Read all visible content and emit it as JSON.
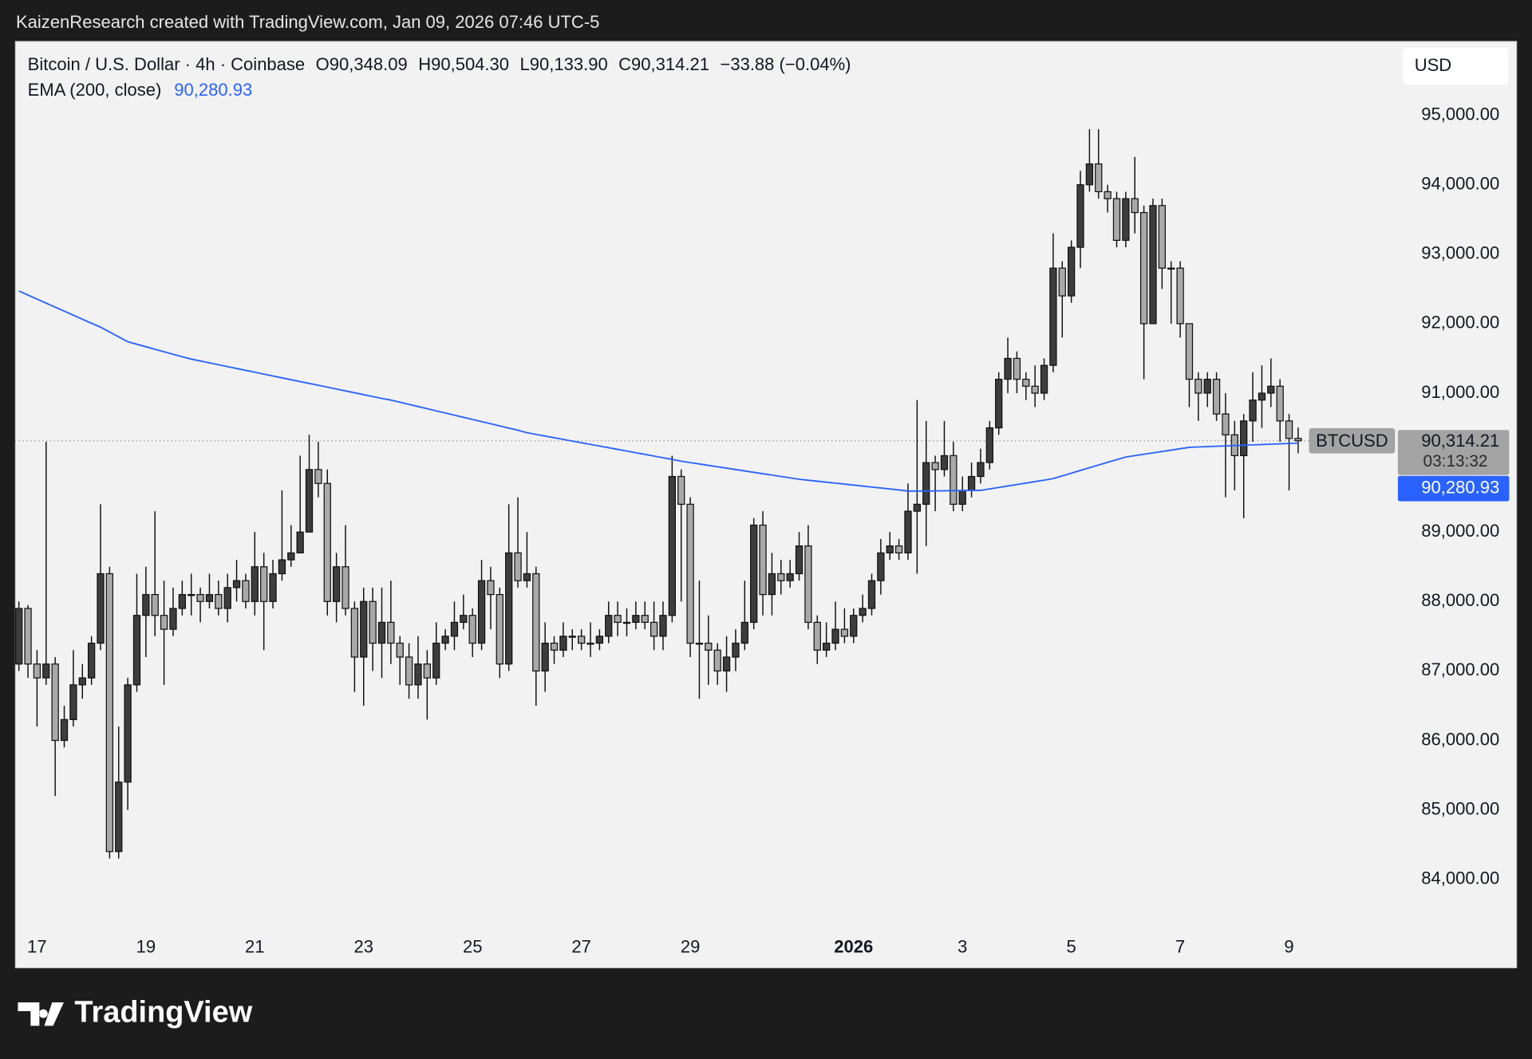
{
  "header": "KaizenResearch created with TradingView.com, Jan 09, 2026 07:46 UTC-5",
  "logo": "TradingView",
  "chart_data": {
    "type": "candlestick",
    "legend": {
      "symbol": "Bitcoin / U.S. Dollar · 4h · Coinbase",
      "o": "O90,348.09",
      "h": "H90,504.30",
      "l": "L90,133.90",
      "c": "C90,314.21",
      "change": "−33.88 (−0.04%)"
    },
    "currency": "USD",
    "up_color": "#3d3d3d",
    "down_color": "#a9a9a9",
    "wick_color": "#111111",
    "categories": [
      null,
      null,
      "17",
      null,
      null,
      null,
      null,
      null,
      null,
      null,
      null,
      null,
      null,
      null,
      "19",
      null,
      null,
      null,
      null,
      null,
      null,
      null,
      null,
      null,
      null,
      null,
      "21",
      null,
      null,
      null,
      null,
      null,
      null,
      null,
      null,
      null,
      null,
      null,
      "23",
      null,
      null,
      null,
      null,
      null,
      null,
      null,
      null,
      null,
      null,
      null,
      "25",
      null,
      null,
      null,
      null,
      null,
      null,
      null,
      null,
      null,
      null,
      null,
      "27",
      null,
      null,
      null,
      null,
      null,
      null,
      null,
      null,
      null,
      null,
      null,
      "29",
      null,
      null,
      null,
      null,
      null,
      null,
      null,
      null,
      null,
      null,
      null,
      null,
      null,
      null,
      null,
      null,
      null,
      "2026",
      null,
      null,
      null,
      null,
      null,
      null,
      null,
      null,
      null,
      null,
      null,
      "3",
      null,
      null,
      null,
      null,
      null,
      null,
      null,
      null,
      null,
      null,
      null,
      "5",
      null,
      null,
      null,
      null,
      null,
      null,
      null,
      null,
      null,
      null,
      null,
      "7",
      null,
      null,
      null,
      null,
      null,
      null,
      null,
      null,
      null,
      null,
      null,
      "9",
      null
    ],
    "open": [
      87100,
      87900,
      87100,
      86900,
      87100,
      86000,
      86300,
      86800,
      86900,
      87400,
      88400,
      84400,
      85400,
      86800,
      87800,
      88100,
      87800,
      87600,
      87900,
      88100,
      88100,
      88000,
      88100,
      87900,
      88200,
      88300,
      88000,
      88500,
      88000,
      88400,
      88600,
      88700,
      89000,
      89900,
      89700,
      88000,
      88500,
      87900,
      87200,
      88000,
      87400,
      87700,
      87400,
      87200,
      86800,
      87100,
      86900,
      87400,
      87500,
      87700,
      87800,
      87400,
      88300,
      88100,
      87100,
      88700,
      88300,
      88400,
      87000,
      87400,
      87300,
      87500,
      87500,
      87400,
      87400,
      87500,
      87800,
      87700,
      87700,
      87800,
      87700,
      87500,
      87800,
      89800,
      89400,
      87400,
      87400,
      87300,
      87000,
      87200,
      87400,
      87700,
      89100,
      88100,
      88400,
      88300,
      88400,
      88800,
      87700,
      87300,
      87400,
      87600,
      87500,
      87800,
      87900,
      88300,
      88700,
      88800,
      88700,
      89300,
      89400,
      90000,
      89900,
      90100,
      89400,
      89600,
      89800,
      90000,
      90500,
      91200,
      91500,
      91200,
      91100,
      91000,
      91400,
      92800,
      92400,
      93100,
      94000,
      94300,
      93900,
      93800,
      93200,
      93800,
      93600,
      92000,
      93700,
      92800,
      92800,
      92000,
      91200,
      91000,
      91200,
      90700,
      90400,
      90100,
      90600,
      90900,
      91000,
      91100,
      90600,
      90348.09
    ],
    "high": [
      88000,
      87950,
      87300,
      90300,
      87200,
      86500,
      87300,
      87100,
      87500,
      89400,
      88500,
      86200,
      86900,
      88400,
      88500,
      89300,
      88300,
      88200,
      88300,
      88400,
      88200,
      88400,
      88300,
      88400,
      88600,
      88400,
      89000,
      88700,
      88600,
      89600,
      89100,
      90100,
      90400,
      90300,
      89900,
      88700,
      89100,
      88000,
      88200,
      88200,
      88200,
      88300,
      87500,
      87400,
      87500,
      87300,
      87700,
      87600,
      88000,
      88100,
      87900,
      88600,
      88500,
      88200,
      89400,
      89500,
      89000,
      88500,
      87700,
      87500,
      87700,
      87600,
      87600,
      87700,
      87600,
      88000,
      88000,
      87900,
      88000,
      88000,
      88000,
      88000,
      90100,
      89900,
      89500,
      88300,
      87800,
      87400,
      87500,
      87600,
      88300,
      89200,
      89300,
      88700,
      88600,
      88600,
      89000,
      89100,
      87800,
      87700,
      88000,
      87900,
      87900,
      88100,
      88400,
      88900,
      89000,
      88900,
      89700,
      90900,
      90600,
      90100,
      90600,
      90300,
      89800,
      90000,
      90200,
      90600,
      91300,
      91800,
      91600,
      91300,
      91400,
      91500,
      93300,
      92900,
      93200,
      94200,
      94800,
      94800,
      94000,
      93900,
      93900,
      94400,
      93700,
      93800,
      93800,
      92900,
      92900,
      92000,
      91300,
      91300,
      91300,
      91000,
      90600,
      90700,
      91300,
      91400,
      91500,
      91200,
      90700,
      90504.3
    ],
    "low": [
      87000,
      86900,
      86200,
      86800,
      85200,
      85900,
      86200,
      86600,
      86800,
      87300,
      84300,
      84300,
      85000,
      86700,
      87200,
      87500,
      86800,
      87500,
      87800,
      87800,
      87700,
      87900,
      87800,
      87700,
      88000,
      87900,
      87800,
      87300,
      87900,
      88300,
      88500,
      88800,
      89000,
      89500,
      87800,
      87700,
      87800,
      86700,
      86500,
      87000,
      86900,
      87100,
      86800,
      86600,
      86600,
      86300,
      86800,
      87300,
      87300,
      87600,
      87200,
      87300,
      87600,
      86900,
      87000,
      88200,
      88200,
      86500,
      86700,
      87100,
      87200,
      87300,
      87300,
      87200,
      87300,
      87400,
      87500,
      87500,
      87600,
      87600,
      87300,
      87300,
      87700,
      88000,
      87200,
      86600,
      86800,
      86800,
      86700,
      87000,
      87300,
      87600,
      87800,
      87800,
      88100,
      88200,
      88300,
      87600,
      87100,
      87200,
      87300,
      87400,
      87400,
      87700,
      87800,
      88100,
      88600,
      88600,
      88600,
      88400,
      88800,
      89300,
      89800,
      89300,
      89300,
      89500,
      89700,
      89900,
      90400,
      91000,
      91000,
      90900,
      90800,
      90900,
      91300,
      91800,
      92300,
      92800,
      93900,
      93800,
      93600,
      93100,
      93100,
      93300,
      91200,
      92000,
      92500,
      92000,
      91800,
      90800,
      90600,
      90800,
      90600,
      89500,
      89600,
      89200,
      90300,
      90500,
      90800,
      90300,
      89600,
      90133.9
    ],
    "close": [
      87900,
      87100,
      86900,
      87100,
      86000,
      86300,
      86800,
      86900,
      87400,
      88400,
      84400,
      85400,
      86800,
      87800,
      88100,
      87800,
      87600,
      87900,
      88100,
      88100,
      88000,
      88100,
      87900,
      88200,
      88300,
      88000,
      88500,
      88000,
      88400,
      88600,
      88700,
      89000,
      89900,
      89700,
      88000,
      88500,
      87900,
      87200,
      88000,
      87400,
      87700,
      87400,
      87200,
      86800,
      87100,
      86900,
      87400,
      87500,
      87700,
      87800,
      87400,
      88300,
      88100,
      87100,
      88700,
      88300,
      88400,
      87000,
      87400,
      87300,
      87500,
      87500,
      87400,
      87400,
      87500,
      87800,
      87700,
      87700,
      87800,
      87700,
      87500,
      87800,
      89800,
      89400,
      87400,
      87400,
      87300,
      87000,
      87200,
      87400,
      87700,
      89100,
      88100,
      88400,
      88300,
      88400,
      88800,
      87700,
      87300,
      87400,
      87600,
      87500,
      87800,
      87900,
      88300,
      88700,
      88800,
      88700,
      89300,
      89400,
      90000,
      89900,
      90100,
      89400,
      89600,
      89800,
      90000,
      90500,
      91200,
      91500,
      91200,
      91100,
      91000,
      91400,
      92800,
      92400,
      93100,
      94000,
      94300,
      93900,
      93800,
      93200,
      93800,
      93600,
      92000,
      93700,
      92800,
      92800,
      92000,
      91200,
      91000,
      91200,
      90700,
      90400,
      90100,
      90600,
      90900,
      91000,
      91100,
      90600,
      90348.09,
      90314.21
    ],
    "last_label": "90,314.21",
    "symbol_label": "BTCUSD",
    "countdown": "03:13:32",
    "ema": {
      "name": "EMA (200, close)",
      "color": "#2962ff",
      "value_label": "90,280.93",
      "values": [
        92470,
        92412,
        92354,
        92296,
        92238,
        92180,
        92122,
        92064,
        92006,
        91950,
        91880,
        91810,
        91740,
        91704,
        91668,
        91632,
        91596,
        91560,
        91524,
        91490,
        91463,
        91436,
        91409,
        91382,
        91355,
        91328,
        91301,
        91274,
        91247,
        91220,
        91193,
        91166,
        91140,
        91113,
        91086,
        91059,
        91032,
        91005,
        90978,
        90951,
        90924,
        90900,
        90869,
        90838,
        90807,
        90776,
        90745,
        90714,
        90683,
        90652,
        90621,
        90590,
        90559,
        90528,
        90497,
        90466,
        90430,
        90406,
        90382,
        90358,
        90334,
        90310,
        90286,
        90262,
        90238,
        90214,
        90190,
        90166,
        90142,
        90118,
        90094,
        90070,
        90046,
        90020,
        90000,
        89980,
        89960,
        89940,
        89920,
        89900,
        89880,
        89860,
        89840,
        89820,
        89800,
        89780,
        89760,
        89746,
        89732,
        89718,
        89704,
        89690,
        89676,
        89662,
        89648,
        89634,
        89620,
        89606,
        89590,
        89590,
        89590,
        89592,
        89594,
        89596,
        89598,
        89600,
        89600,
        89621,
        89642,
        89663,
        89684,
        89705,
        89726,
        89747,
        89770,
        89809,
        89848,
        89887,
        89926,
        89965,
        90004,
        90043,
        90080,
        90100,
        90120,
        90140,
        90160,
        90180,
        90200,
        90220,
        90225,
        90230,
        90235,
        90240,
        90245,
        90250,
        90255,
        90260,
        90265,
        90270,
        90275,
        90280.93
      ]
    },
    "ylim": [
      83240,
      96070
    ],
    "yticks": [
      {
        "value": 84000,
        "label": "84,000.00"
      },
      {
        "value": 85000,
        "label": "85,000.00"
      },
      {
        "value": 86000,
        "label": "86,000.00"
      },
      {
        "value": 87000,
        "label": "87,000.00"
      },
      {
        "value": 88000,
        "label": "88,000.00"
      },
      {
        "value": 89000,
        "label": "89,000.00"
      },
      {
        "value": 90000,
        "label": "90,000.00"
      },
      {
        "value": 91000,
        "label": "91,000.00"
      },
      {
        "value": 92000,
        "label": "92,000.00"
      },
      {
        "value": 93000,
        "label": "93,000.00"
      },
      {
        "value": 94000,
        "label": "94,000.00"
      },
      {
        "value": 95000,
        "label": "95,000.00"
      }
    ],
    "grid": false
  }
}
